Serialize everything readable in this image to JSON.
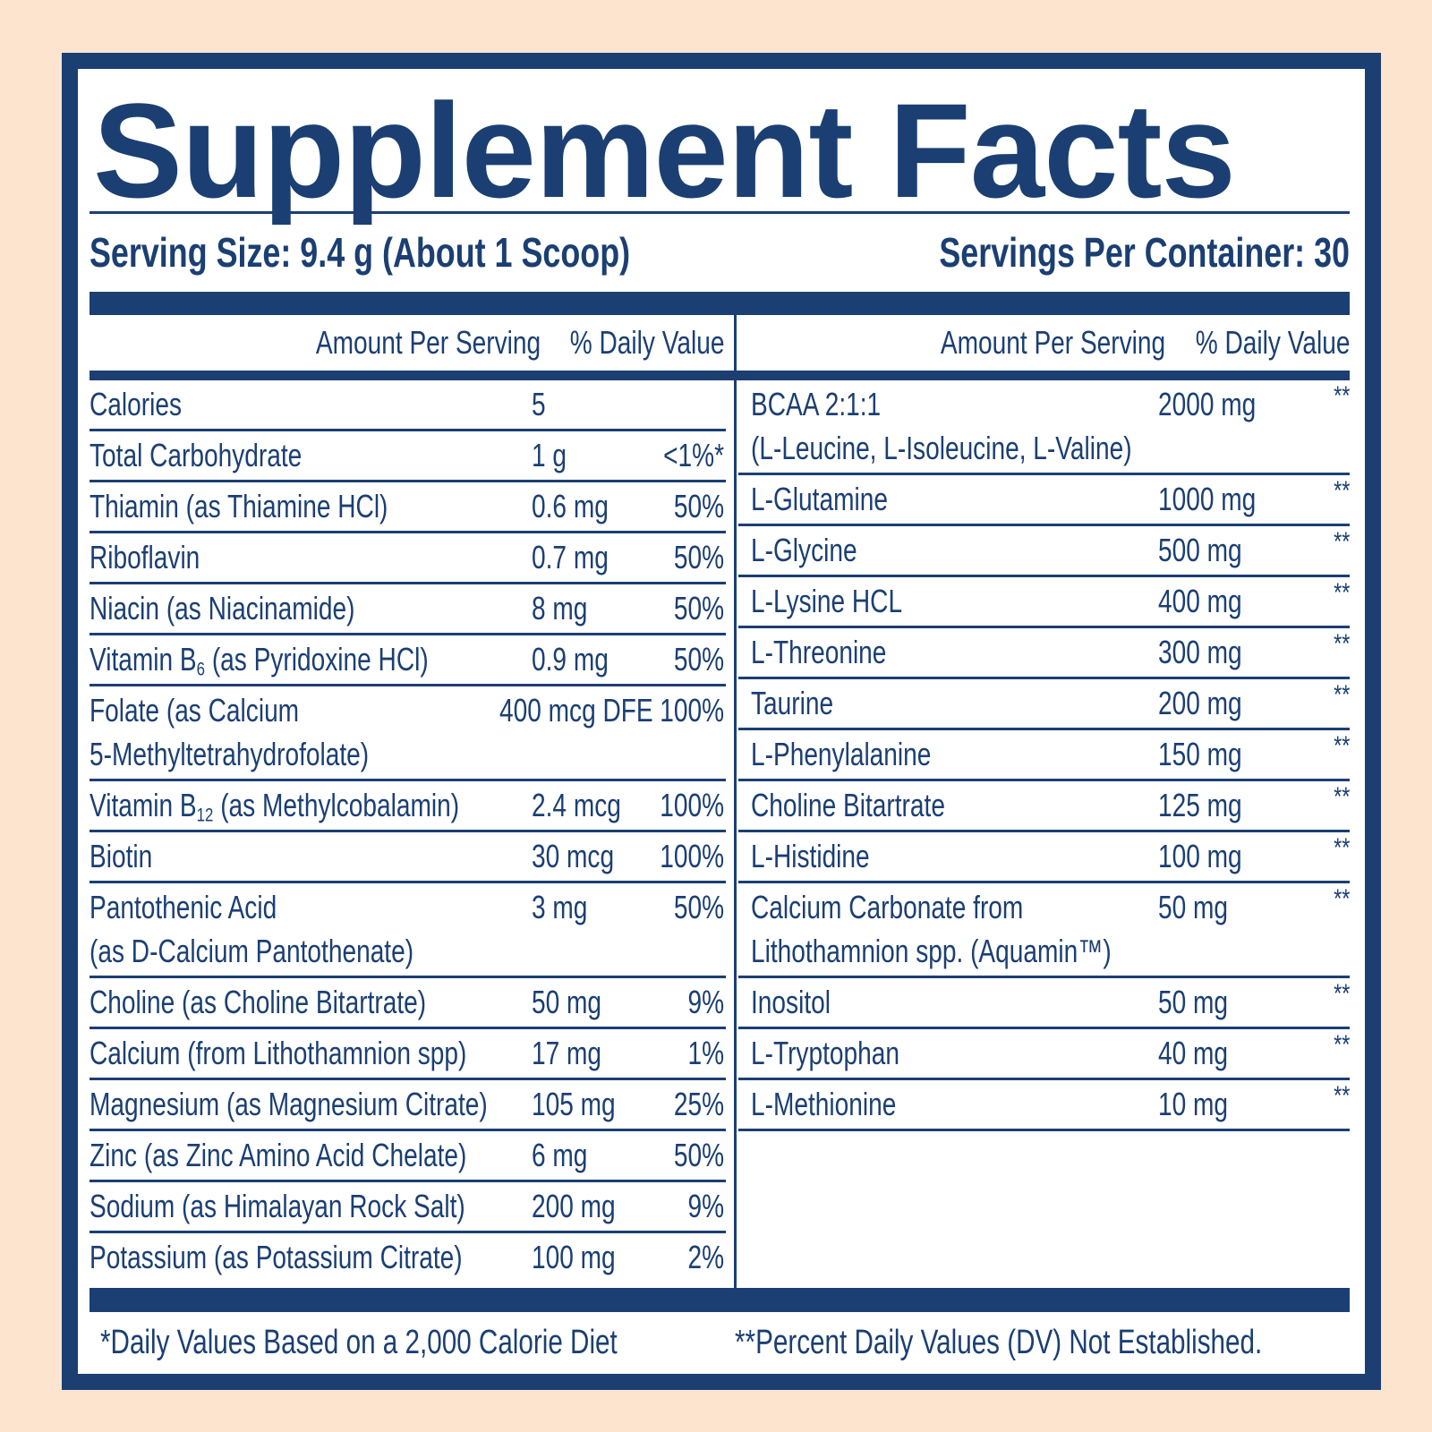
{
  "title": "Supplement Facts",
  "serving_size": "Serving Size: 9.4 g (About 1 Scoop)",
  "servings_per_container": "Servings Per Container: 30",
  "left_table": {
    "columns": [
      "Amount Per Serving",
      "% Daily Value"
    ],
    "rows": [
      {
        "name": "Calories",
        "amount": "5"
      },
      {
        "name": "Total Carbohydrate",
        "amount": "1 g",
        "dv": "<1%*"
      },
      {
        "name": "Thiamin (as Thiamine HCl)",
        "amount": "0.6 mg",
        "dv": "50%"
      },
      {
        "name": "Riboflavin",
        "amount": "0.7 mg",
        "dv": "50%"
      },
      {
        "name": "Niacin (as Niacinamide)",
        "amount": "8 mg",
        "dv": "50%"
      },
      {
        "name": {
          "text": "Vitamin B",
          "sub": "6",
          "after": " (as Pyridoxine HCl)"
        },
        "amount": "0.9 mg",
        "dv": "50%"
      },
      {
        "name": [
          "Folate (as Calcium",
          "5-Methyltetrahydrofolate)"
        ],
        "amount": "400 mcg DFE",
        "dv": "100%"
      },
      {
        "name": {
          "text": "Vitamin B",
          "sub": "12",
          "after": " (as Methylcobalamin)"
        },
        "amount": "2.4 mcg",
        "dv": "100%"
      },
      {
        "name": "Biotin",
        "amount": "30 mcg",
        "dv": "100%"
      },
      {
        "name": [
          "Pantothenic Acid",
          "(as D-Calcium Pantothenate)"
        ],
        "amount": "3 mg",
        "dv": "50%"
      },
      {
        "name": "Choline (as Choline Bitartrate)",
        "amount": "50 mg",
        "dv": "9%"
      },
      {
        "name": "Calcium (from Lithothamnion spp)",
        "amount": "17 mg",
        "dv": "1%"
      },
      {
        "name": "Magnesium (as Magnesium Citrate)",
        "amount": "105 mg",
        "dv": "25%"
      },
      {
        "name": "Zinc (as Zinc Amino Acid Chelate)",
        "amount": "6 mg",
        "dv": "50%"
      },
      {
        "name": "Sodium (as Himalayan Rock Salt)",
        "amount": "200 mg",
        "dv": "9%"
      },
      {
        "name": "Potassium (as Potassium Citrate)",
        "amount": "100 mg",
        "dv": "2%"
      }
    ]
  },
  "right_table": {
    "columns": [
      "Amount Per Serving",
      "% Daily Value"
    ],
    "rows": [
      {
        "name": [
          "BCAA 2:1:1",
          "(L-Leucine, L-Isoleucine, L-Valine)"
        ],
        "amount": "2000 mg",
        "dv": "**"
      },
      {
        "name": "L-Glutamine",
        "amount": "1000 mg",
        "dv": "**"
      },
      {
        "name": "L-Glycine",
        "amount": "500 mg",
        "dv": "**"
      },
      {
        "name": "L-Lysine HCL",
        "amount": "400 mg",
        "dv": "**"
      },
      {
        "name": "L-Threonine",
        "amount": "300 mg",
        "dv": "**"
      },
      {
        "name": "Taurine",
        "amount": "200 mg",
        "dv": "**"
      },
      {
        "name": "L-Phenylalanine",
        "amount": "150 mg",
        "dv": "**"
      },
      {
        "name": "Choline Bitartrate",
        "amount": "125 mg",
        "dv": "**"
      },
      {
        "name": "L-Histidine",
        "amount": "100 mg",
        "dv": "**"
      },
      {
        "name": [
          "Calcium Carbonate from",
          "Lithothamnion spp. (Aquamin™)"
        ],
        "amount": "50 mg",
        "dv": "**"
      },
      {
        "name": "Inositol",
        "amount": "50 mg",
        "dv": "**"
      },
      {
        "name": "L-Tryptophan",
        "amount": "40 mg",
        "dv": "**"
      },
      {
        "name": "L-Methionine",
        "amount": "10 mg",
        "dv": "**"
      }
    ]
  },
  "footer": {
    "left": "*Daily Values Based on a 2,000 Calorie Diet",
    "right": "**Percent Daily Values (DV) Not Established."
  }
}
